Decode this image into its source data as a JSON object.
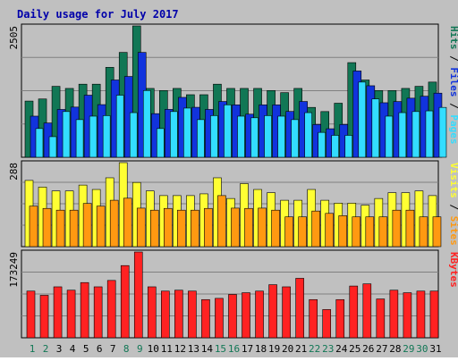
{
  "chart_data": [
    {
      "type": "bar",
      "title": "Daily usage for July 2017",
      "panel": "hits-files-pages",
      "ymax_label": "2505",
      "ymax": 2505,
      "categories": [
        "1",
        "2",
        "3",
        "4",
        "5",
        "6",
        "7",
        "8",
        "9",
        "10",
        "11",
        "12",
        "13",
        "14",
        "15",
        "16",
        "17",
        "18",
        "19",
        "20",
        "21",
        "22",
        "23",
        "24",
        "25",
        "26",
        "27",
        "28",
        "29",
        "30",
        "31"
      ],
      "series": [
        {
          "name": "Hits",
          "color": "#117755",
          "values": [
            1072,
            1112,
            1353,
            1313,
            1394,
            1394,
            1715,
            2000,
            2505,
            1313,
            1273,
            1313,
            1193,
            1193,
            1394,
            1313,
            1313,
            1313,
            1273,
            1233,
            1313,
            951,
            872,
            1031,
            1805,
            1474,
            1273,
            1273,
            1313,
            1353,
            1434
          ]
        },
        {
          "name": "Files",
          "color": "#1133dd",
          "values": [
            784,
            654,
            912,
            957,
            1184,
            1004,
            1474,
            1541,
            2000,
            832,
            913,
            1142,
            953,
            912,
            1064,
            999,
            822,
            999,
            999,
            874,
            1064,
            624,
            544,
            624,
            1646,
            1364,
            1040,
            1063,
            1127,
            1164,
            1223
          ]
        },
        {
          "name": "Pages",
          "color": "#33ddff",
          "values": [
            548,
            393,
            872,
            718,
            784,
            794,
            1184,
            851,
            1273,
            548,
            872,
            938,
            718,
            794,
            1000,
            784,
            753,
            794,
            784,
            718,
            851,
            474,
            418,
            418,
            1434,
            1112,
            784,
            851,
            872,
            885,
            951
          ]
        }
      ],
      "legend": [
        "Pages",
        "Files",
        "Hits"
      ]
    },
    {
      "type": "bar",
      "panel": "visits-sites",
      "ymax_label": "288",
      "ymax": 288,
      "categories": [
        "1",
        "2",
        "3",
        "4",
        "5",
        "6",
        "7",
        "8",
        "9",
        "10",
        "11",
        "12",
        "13",
        "14",
        "15",
        "16",
        "17",
        "18",
        "19",
        "20",
        "21",
        "22",
        "23",
        "24",
        "25",
        "26",
        "27",
        "28",
        "29",
        "30",
        "31"
      ],
      "series": [
        {
          "name": "Visits",
          "color": "#ffff33",
          "values": [
            227,
            204,
            191,
            191,
            211,
            196,
            236,
            288,
            220,
            191,
            175,
            175,
            175,
            181,
            236,
            165,
            216,
            196,
            185,
            159,
            159,
            196,
            159,
            149,
            149,
            142,
            165,
            185,
            185,
            191,
            175
          ]
        },
        {
          "name": "Sites",
          "color": "#ff9911",
          "values": [
            139,
            131,
            125,
            125,
            148,
            139,
            159,
            166,
            132,
            125,
            131,
            125,
            125,
            131,
            175,
            132,
            131,
            132,
            125,
            102,
            102,
            122,
            114,
            106,
            102,
            102,
            102,
            125,
            125,
            102,
            102
          ]
        }
      ],
      "legend": [
        "Sites",
        "Visits"
      ]
    },
    {
      "type": "bar",
      "panel": "kbytes",
      "ymax_label": "173249",
      "ymax": 173249,
      "categories": [
        "1",
        "2",
        "3",
        "4",
        "5",
        "6",
        "7",
        "8",
        "9",
        "10",
        "11",
        "12",
        "13",
        "14",
        "15",
        "16",
        "17",
        "18",
        "19",
        "20",
        "21",
        "22",
        "23",
        "24",
        "25",
        "26",
        "27",
        "28",
        "29",
        "30",
        "31"
      ],
      "series": [
        {
          "name": "KBytes",
          "color": "#ff2222",
          "values": [
            94300,
            85800,
            102900,
            96100,
            111500,
            102900,
            115800,
            145800,
            173249,
            102900,
            94300,
            96100,
            94300,
            77100,
            79600,
            87500,
            91000,
            94300,
            107200,
            102900,
            120100,
            77100,
            57000,
            77100,
            104500,
            108900,
            78400,
            96100,
            91000,
            94300,
            94300
          ]
        }
      ],
      "legend": [
        "KBytes"
      ]
    }
  ],
  "x_labels": [
    {
      "label": "1",
      "weekend": true
    },
    {
      "label": "2",
      "weekend": true
    },
    {
      "label": "3",
      "weekend": false
    },
    {
      "label": "4",
      "weekend": false
    },
    {
      "label": "5",
      "weekend": false
    },
    {
      "label": "6",
      "weekend": false
    },
    {
      "label": "7",
      "weekend": false
    },
    {
      "label": "8",
      "weekend": true
    },
    {
      "label": "9",
      "weekend": true
    },
    {
      "label": "10",
      "weekend": false
    },
    {
      "label": "11",
      "weekend": false
    },
    {
      "label": "12",
      "weekend": false
    },
    {
      "label": "13",
      "weekend": false
    },
    {
      "label": "14",
      "weekend": false
    },
    {
      "label": "15",
      "weekend": true
    },
    {
      "label": "16",
      "weekend": true
    },
    {
      "label": "17",
      "weekend": false
    },
    {
      "label": "18",
      "weekend": false
    },
    {
      "label": "19",
      "weekend": false
    },
    {
      "label": "20",
      "weekend": false
    },
    {
      "label": "21",
      "weekend": false
    },
    {
      "label": "22",
      "weekend": true
    },
    {
      "label": "23",
      "weekend": true
    },
    {
      "label": "24",
      "weekend": false
    },
    {
      "label": "25",
      "weekend": false
    },
    {
      "label": "26",
      "weekend": false
    },
    {
      "label": "27",
      "weekend": false
    },
    {
      "label": "28",
      "weekend": false
    },
    {
      "label": "29",
      "weekend": true
    },
    {
      "label": "30",
      "weekend": true
    },
    {
      "label": "31",
      "weekend": false
    }
  ],
  "colors": {
    "title": "#0000aa",
    "panel_bg": "#c0c0c0",
    "frame_bg": "#c0c0c0",
    "weekday_label": "#000000",
    "weekend_label": "#117755",
    "legend_separator": "#000000"
  }
}
